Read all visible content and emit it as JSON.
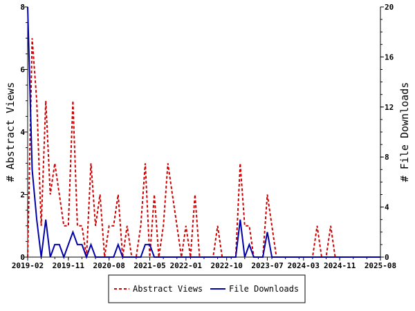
{
  "chart_data": {
    "type": "line",
    "x_tick_labels": [
      "2019-02",
      "2019-11",
      "2020-08",
      "2021-05",
      "2022-01",
      "2022-10",
      "2023-07",
      "2024-03",
      "2024-11",
      "2025-08"
    ],
    "x_range": [
      "2019-02",
      "2025-08"
    ],
    "y_left": {
      "label": "# Abstract Views",
      "ticks": [
        0,
        2,
        4,
        6,
        8
      ],
      "ylim": [
        0,
        8
      ]
    },
    "y_right": {
      "label": "# File Downloads",
      "ticks": [
        0,
        4,
        8,
        12,
        16,
        20
      ],
      "ylim": [
        0,
        20
      ]
    },
    "grid": false,
    "legend_position": "bottom-center",
    "series": [
      {
        "name": "Abstract Views",
        "color": "#cc0000",
        "style": "dashed",
        "axis": "left",
        "points": [
          [
            "2019-02",
            0
          ],
          [
            "2019-03",
            7
          ],
          [
            "2019-04",
            5
          ],
          [
            "2019-05",
            1
          ],
          [
            "2019-06",
            5
          ],
          [
            "2019-07",
            2
          ],
          [
            "2019-08",
            3
          ],
          [
            "2019-09",
            2
          ],
          [
            "2019-10",
            1
          ],
          [
            "2019-11",
            1
          ],
          [
            "2019-12",
            5
          ],
          [
            "2020-01",
            1
          ],
          [
            "2020-02",
            1
          ],
          [
            "2020-03",
            0
          ],
          [
            "2020-04",
            3
          ],
          [
            "2020-05",
            1
          ],
          [
            "2020-06",
            2
          ],
          [
            "2020-07",
            0
          ],
          [
            "2020-08",
            1
          ],
          [
            "2020-09",
            1
          ],
          [
            "2020-10",
            2
          ],
          [
            "2020-11",
            0
          ],
          [
            "2020-12",
            1
          ],
          [
            "2021-01",
            0
          ],
          [
            "2021-02",
            0
          ],
          [
            "2021-03",
            1
          ],
          [
            "2021-04",
            3
          ],
          [
            "2021-05",
            0
          ],
          [
            "2021-06",
            2
          ],
          [
            "2021-07",
            0
          ],
          [
            "2021-08",
            1
          ],
          [
            "2021-09",
            3
          ],
          [
            "2021-10",
            2
          ],
          [
            "2021-11",
            1
          ],
          [
            "2021-12",
            0
          ],
          [
            "2022-01",
            1
          ],
          [
            "2022-02",
            0
          ],
          [
            "2022-03",
            2
          ],
          [
            "2022-04",
            0
          ],
          [
            "2022-05",
            0
          ],
          [
            "2022-06",
            0
          ],
          [
            "2022-07",
            0
          ],
          [
            "2022-08",
            1
          ],
          [
            "2022-09",
            0
          ],
          [
            "2022-10",
            0
          ],
          [
            "2022-11",
            0
          ],
          [
            "2022-12",
            0
          ],
          [
            "2023-01",
            3
          ],
          [
            "2023-02",
            1
          ],
          [
            "2023-03",
            1
          ],
          [
            "2023-04",
            0
          ],
          [
            "2023-05",
            0
          ],
          [
            "2023-06",
            0
          ],
          [
            "2023-07",
            2
          ],
          [
            "2023-08",
            1
          ],
          [
            "2023-09",
            0
          ],
          [
            "2023-10",
            0
          ],
          [
            "2023-11",
            0
          ],
          [
            "2023-12",
            0
          ],
          [
            "2024-01",
            0
          ],
          [
            "2024-02",
            0
          ],
          [
            "2024-03",
            0
          ],
          [
            "2024-04",
            0
          ],
          [
            "2024-05",
            0
          ],
          [
            "2024-06",
            1
          ],
          [
            "2024-07",
            0
          ],
          [
            "2024-08",
            0
          ],
          [
            "2024-09",
            1
          ],
          [
            "2024-10",
            0
          ],
          [
            "2024-11",
            0
          ],
          [
            "2024-12",
            0
          ],
          [
            "2025-01",
            0
          ],
          [
            "2025-02",
            0
          ],
          [
            "2025-03",
            0
          ],
          [
            "2025-04",
            0
          ],
          [
            "2025-05",
            0
          ],
          [
            "2025-06",
            0
          ],
          [
            "2025-07",
            0
          ],
          [
            "2025-08",
            0
          ]
        ]
      },
      {
        "name": "File Downloads",
        "color": "#0000aa",
        "style": "solid",
        "axis": "right",
        "points": [
          [
            "2019-02",
            20
          ],
          [
            "2019-03",
            7
          ],
          [
            "2019-04",
            3
          ],
          [
            "2019-05",
            0
          ],
          [
            "2019-06",
            3
          ],
          [
            "2019-07",
            0
          ],
          [
            "2019-08",
            1
          ],
          [
            "2019-09",
            1
          ],
          [
            "2019-10",
            0
          ],
          [
            "2019-11",
            1
          ],
          [
            "2019-12",
            2
          ],
          [
            "2020-01",
            1
          ],
          [
            "2020-02",
            1
          ],
          [
            "2020-03",
            0
          ],
          [
            "2020-04",
            1
          ],
          [
            "2020-05",
            0
          ],
          [
            "2020-06",
            0
          ],
          [
            "2020-07",
            0
          ],
          [
            "2020-08",
            0
          ],
          [
            "2020-09",
            0
          ],
          [
            "2020-10",
            1
          ],
          [
            "2020-11",
            0
          ],
          [
            "2020-12",
            0
          ],
          [
            "2021-01",
            0
          ],
          [
            "2021-02",
            0
          ],
          [
            "2021-03",
            0
          ],
          [
            "2021-04",
            1
          ],
          [
            "2021-05",
            1
          ],
          [
            "2021-06",
            0
          ],
          [
            "2021-07",
            0
          ],
          [
            "2021-08",
            0
          ],
          [
            "2021-09",
            0
          ],
          [
            "2021-10",
            0
          ],
          [
            "2021-11",
            0
          ],
          [
            "2021-12",
            0
          ],
          [
            "2022-01",
            0
          ],
          [
            "2022-02",
            0
          ],
          [
            "2022-03",
            0
          ],
          [
            "2022-04",
            0
          ],
          [
            "2022-05",
            0
          ],
          [
            "2022-06",
            0
          ],
          [
            "2022-07",
            0
          ],
          [
            "2022-08",
            0
          ],
          [
            "2022-09",
            0
          ],
          [
            "2022-10",
            0
          ],
          [
            "2022-11",
            0
          ],
          [
            "2022-12",
            0
          ],
          [
            "2023-01",
            3
          ],
          [
            "2023-02",
            0
          ],
          [
            "2023-03",
            1
          ],
          [
            "2023-04",
            0
          ],
          [
            "2023-05",
            0
          ],
          [
            "2023-06",
            0
          ],
          [
            "2023-07",
            2
          ],
          [
            "2023-08",
            0
          ],
          [
            "2023-09",
            0
          ],
          [
            "2023-10",
            0
          ],
          [
            "2023-11",
            0
          ],
          [
            "2023-12",
            0
          ],
          [
            "2024-01",
            0
          ],
          [
            "2024-02",
            0
          ],
          [
            "2024-03",
            0
          ],
          [
            "2024-04",
            0
          ],
          [
            "2024-05",
            0
          ],
          [
            "2024-06",
            0
          ],
          [
            "2024-07",
            0
          ],
          [
            "2024-08",
            0
          ],
          [
            "2024-09",
            0
          ],
          [
            "2024-10",
            0
          ],
          [
            "2024-11",
            0
          ],
          [
            "2024-12",
            0
          ],
          [
            "2025-01",
            0
          ],
          [
            "2025-02",
            0
          ],
          [
            "2025-03",
            0
          ],
          [
            "2025-04",
            0
          ],
          [
            "2025-05",
            0
          ],
          [
            "2025-06",
            0
          ],
          [
            "2025-07",
            0
          ],
          [
            "2025-08",
            0
          ]
        ]
      }
    ]
  }
}
